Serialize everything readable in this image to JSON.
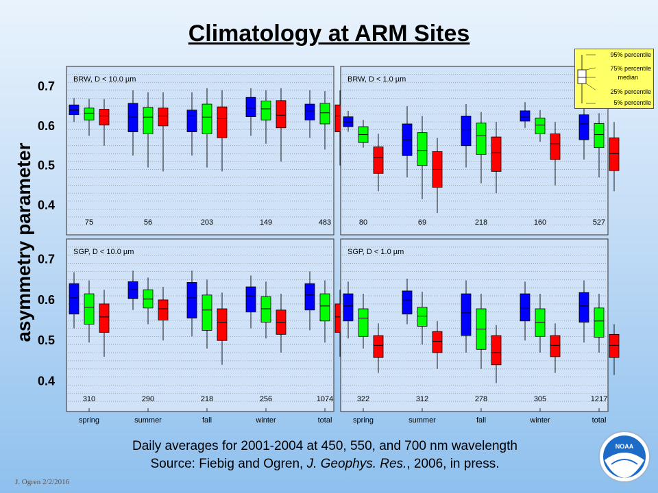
{
  "title": "Climatology at ARM Sites",
  "ylabel": "asymmetry parameter",
  "footer_line1": "Daily averages for 2001-2004 at 450, 550, and 700 nm wavelength",
  "footer_line2_pre": "Source: Fiebig and Ogren, ",
  "footer_line2_journal": "J. Geophys. Res.",
  "footer_line2_post": ", 2006, in press.",
  "credit": "J. Ogren  2/2/2016",
  "logo_text": "NOAA",
  "legend": {
    "labels": [
      "95% percentile",
      "75% percentile",
      "median",
      "25% percentile",
      "5% percentile"
    ]
  },
  "colors": {
    "450nm": "#0000ff",
    "550nm": "#00ff00",
    "700nm": "#ff0000",
    "legend_bg": "#ffff66"
  },
  "chart_data": [
    {
      "type": "box",
      "title": "BRW, D < 10.0 µm",
      "categories": [
        "spring",
        "summer",
        "fall",
        "winter",
        "total"
      ],
      "counts": [
        "75",
        "56",
        "203",
        "149",
        "483"
      ],
      "ylim": [
        0.33,
        0.745
      ],
      "yticks": [
        "0.7",
        "0.6",
        "0.5",
        "0.4"
      ],
      "series": [
        {
          "color": "blue",
          "p5": [
            0.61,
            0.525,
            0.525,
            0.575,
            0.57
          ],
          "p25": [
            0.628,
            0.585,
            0.585,
            0.623,
            0.615
          ],
          "median": [
            0.64,
            0.622,
            0.625,
            0.645,
            0.638
          ],
          "p75": [
            0.653,
            0.657,
            0.64,
            0.672,
            0.655
          ],
          "p95": [
            0.67,
            0.69,
            0.685,
            0.695,
            0.69
          ]
        },
        {
          "color": "green",
          "p5": [
            0.575,
            0.495,
            0.495,
            0.555,
            0.54
          ],
          "p25": [
            0.615,
            0.58,
            0.58,
            0.615,
            0.605
          ],
          "median": [
            0.632,
            0.622,
            0.622,
            0.643,
            0.633
          ],
          "p75": [
            0.645,
            0.647,
            0.655,
            0.663,
            0.657
          ],
          "p95": [
            0.668,
            0.685,
            0.695,
            0.69,
            0.688
          ]
        },
        {
          "color": "red",
          "p5": [
            0.55,
            0.485,
            0.485,
            0.51,
            0.5
          ],
          "p25": [
            0.602,
            0.6,
            0.57,
            0.595,
            0.585
          ],
          "median": [
            0.625,
            0.625,
            0.618,
            0.627,
            0.625
          ],
          "p75": [
            0.642,
            0.645,
            0.648,
            0.664,
            0.653
          ],
          "p95": [
            0.668,
            0.685,
            0.69,
            0.695,
            0.69
          ]
        }
      ]
    },
    {
      "type": "box",
      "title": "BRW, D < 1.0 µm",
      "categories": [
        "spring",
        "summer",
        "fall",
        "winter",
        "total"
      ],
      "counts": [
        "80",
        "69",
        "218",
        "160",
        "527"
      ],
      "ylim": [
        0.33,
        0.745
      ],
      "yticks": [
        "0.7",
        "0.6",
        "0.5",
        "0.4"
      ],
      "series": [
        {
          "color": "blue",
          "p5": [
            0.585,
            0.47,
            0.495,
            0.595,
            0.515
          ],
          "p25": [
            0.598,
            0.525,
            0.55,
            0.612,
            0.565
          ],
          "median": [
            0.61,
            0.565,
            0.59,
            0.622,
            0.605
          ],
          "p75": [
            0.623,
            0.605,
            0.625,
            0.638,
            0.628
          ],
          "p95": [
            0.638,
            0.65,
            0.655,
            0.66,
            0.655
          ]
        },
        {
          "color": "green",
          "p5": [
            0.545,
            0.415,
            0.455,
            0.56,
            0.47
          ],
          "p25": [
            0.558,
            0.5,
            0.528,
            0.58,
            0.545
          ],
          "median": [
            0.578,
            0.538,
            0.575,
            0.602,
            0.578
          ],
          "p75": [
            0.598,
            0.583,
            0.607,
            0.62,
            0.606
          ],
          "p95": [
            0.615,
            0.625,
            0.635,
            0.64,
            0.632
          ]
        },
        {
          "color": "red",
          "p5": [
            0.435,
            0.38,
            0.43,
            0.45,
            0.435
          ],
          "p25": [
            0.48,
            0.445,
            0.485,
            0.515,
            0.487
          ],
          "median": [
            0.52,
            0.49,
            0.532,
            0.555,
            0.53
          ],
          "p75": [
            0.547,
            0.535,
            0.572,
            0.58,
            0.57
          ],
          "p95": [
            0.58,
            0.57,
            0.61,
            0.61,
            0.61
          ]
        }
      ]
    },
    {
      "type": "box",
      "title": "SGP, D < 10.0 µm",
      "categories": [
        "spring",
        "summer",
        "fall",
        "winter",
        "total"
      ],
      "counts": [
        "310",
        "290",
        "218",
        "256",
        "1074"
      ],
      "ylim": [
        0.33,
        0.745
      ],
      "yticks": [
        "0.7",
        "0.6",
        "0.5",
        "0.4"
      ],
      "series": [
        {
          "color": "blue",
          "p5": [
            0.53,
            0.575,
            0.51,
            0.53,
            0.525
          ],
          "p25": [
            0.565,
            0.603,
            0.555,
            0.57,
            0.575
          ],
          "median": [
            0.605,
            0.625,
            0.605,
            0.61,
            0.612
          ],
          "p75": [
            0.64,
            0.645,
            0.643,
            0.632,
            0.64
          ],
          "p95": [
            0.668,
            0.672,
            0.672,
            0.66,
            0.67
          ]
        },
        {
          "color": "green",
          "p5": [
            0.495,
            0.54,
            0.48,
            0.505,
            0.495
          ],
          "p25": [
            0.54,
            0.58,
            0.525,
            0.545,
            0.548
          ],
          "median": [
            0.582,
            0.602,
            0.575,
            0.578,
            0.585
          ],
          "p75": [
            0.615,
            0.625,
            0.612,
            0.608,
            0.615
          ],
          "p95": [
            0.648,
            0.655,
            0.65,
            0.645,
            0.648
          ]
        },
        {
          "color": "red",
          "p5": [
            0.46,
            0.5,
            0.44,
            0.47,
            0.46
          ],
          "p25": [
            0.52,
            0.55,
            0.5,
            0.515,
            0.52
          ],
          "median": [
            0.558,
            0.578,
            0.545,
            0.545,
            0.558
          ],
          "p75": [
            0.59,
            0.6,
            0.578,
            0.575,
            0.59
          ],
          "p95": [
            0.625,
            0.632,
            0.618,
            0.615,
            0.625
          ]
        }
      ]
    },
    {
      "type": "box",
      "title": "SGP, D < 1.0 µm",
      "categories": [
        "spring",
        "summer",
        "fall",
        "winter",
        "total"
      ],
      "counts": [
        "322",
        "312",
        "278",
        "305",
        "1217"
      ],
      "ylim": [
        0.33,
        0.745
      ],
      "yticks": [
        "0.7",
        "0.6",
        "0.5",
        "0.4"
      ],
      "series": [
        {
          "color": "blue",
          "p5": [
            0.505,
            0.54,
            0.47,
            0.5,
            0.495
          ],
          "p25": [
            0.548,
            0.565,
            0.512,
            0.548,
            0.545
          ],
          "median": [
            0.585,
            0.6,
            0.568,
            0.58,
            0.585
          ],
          "p75": [
            0.615,
            0.622,
            0.615,
            0.615,
            0.618
          ],
          "p95": [
            0.645,
            0.652,
            0.648,
            0.645,
            0.648
          ]
        },
        {
          "color": "green",
          "p5": [
            0.48,
            0.49,
            0.43,
            0.47,
            0.47
          ],
          "p25": [
            0.51,
            0.535,
            0.478,
            0.51,
            0.508
          ],
          "median": [
            0.555,
            0.56,
            0.528,
            0.545,
            0.548
          ],
          "p75": [
            0.578,
            0.582,
            0.578,
            0.578,
            0.58
          ],
          "p95": [
            0.615,
            0.62,
            0.615,
            0.615,
            0.615
          ]
        },
        {
          "color": "red",
          "p5": [
            0.42,
            0.43,
            0.395,
            0.42,
            0.415
          ],
          "p25": [
            0.458,
            0.47,
            0.44,
            0.46,
            0.458
          ],
          "median": [
            0.488,
            0.498,
            0.47,
            0.488,
            0.488
          ],
          "p75": [
            0.512,
            0.522,
            0.512,
            0.512,
            0.515
          ],
          "p95": [
            0.542,
            0.548,
            0.538,
            0.542,
            0.54
          ]
        }
      ]
    }
  ]
}
